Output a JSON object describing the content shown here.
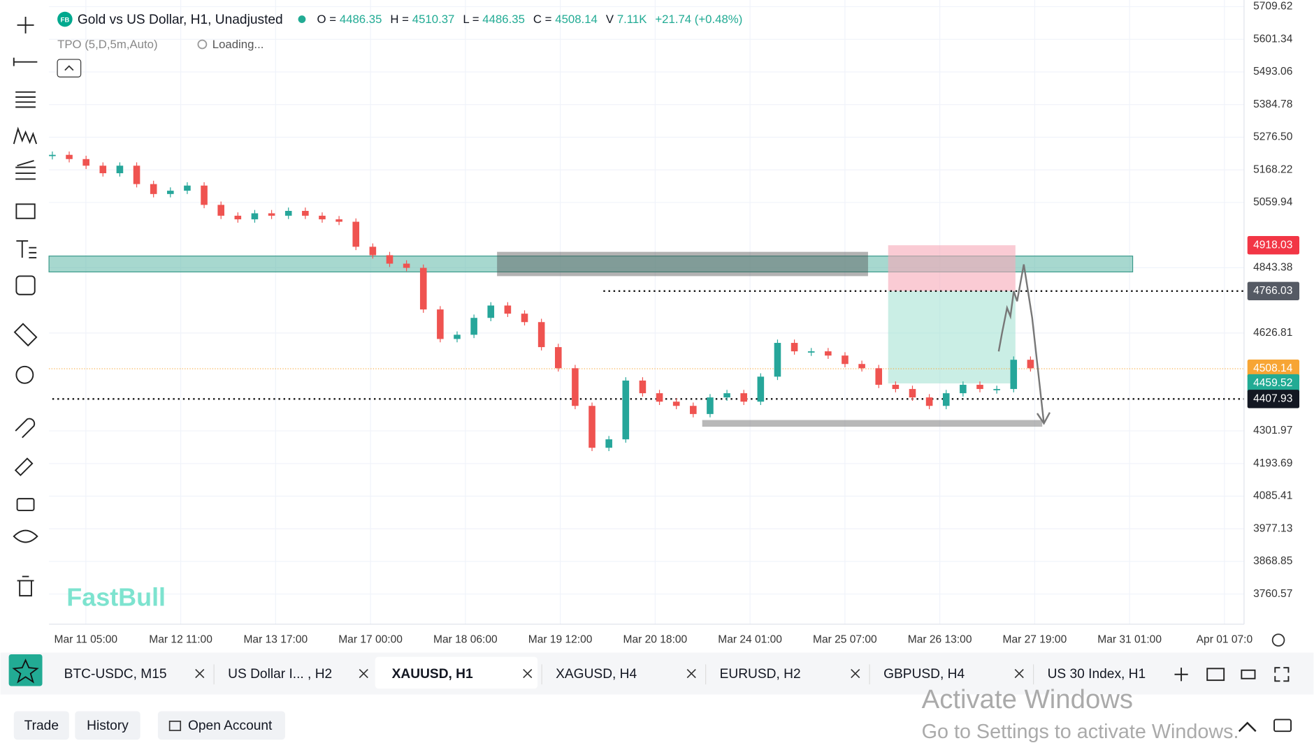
{
  "header": {
    "title": "Gold vs US Dollar, H1, Unadjusted",
    "badge": "FB",
    "ohlcv": [
      {
        "key": "O =",
        "value": "4486.35"
      },
      {
        "key": "H =",
        "value": "4510.37"
      },
      {
        "key": "L =",
        "value": "4486.35"
      },
      {
        "key": "C =",
        "value": "4508.14"
      },
      {
        "key": "V",
        "value": "7.11K"
      }
    ],
    "change": "+21.74 (+0.48%)",
    "indicator": "TPO (5,D,5m,Auto)",
    "loading": "Loading..."
  },
  "watermark": "FastBull",
  "chart": {
    "type": "candlestick",
    "ylim": [
      3660.6,
      5731.8
    ],
    "yticks": [
      5709.62,
      5601.34,
      5493.06,
      5384.78,
      {
        "value": 5276.5,
        "label": "5276.50"
      },
      5168.22,
      5059.94,
      4843.38,
      4626.81,
      4301.97,
      4193.69,
      4085.41,
      3977.13,
      3868.85,
      3760.57
    ],
    "xlabels": [
      "Mar 11 05:00",
      "Mar 12 11:00",
      "Mar 13 17:00",
      "Mar 17 00:00",
      "Mar 18 06:00",
      "Mar 19 12:00",
      "Mar 20 18:00",
      "Mar 24 01:00",
      "Mar 25 07:00",
      "Mar 26 13:00",
      "Mar 27 19:00",
      "Mar 31 01:00",
      "Apr 01 07:0"
    ],
    "closes": [
      5218,
      5204,
      5182,
      5157,
      5182,
      5121,
      5088,
      5099,
      5116,
      5052,
      5016,
      5004,
      5024,
      5016,
      5032,
      5016,
      5004,
      4996,
      4913,
      4885,
      4857,
      4843,
      4705,
      4607,
      4621,
      4677,
      4718,
      4691,
      4663,
      4580,
      4510,
      4385,
      4246,
      4274,
      4469,
      4427,
      4399,
      4385,
      4358,
      4413,
      4427,
      4399,
      4482,
      4594,
      4566,
      4566,
      4552,
      4524,
      4510,
      4455,
      4441,
      4413,
      4385,
      4427,
      4455,
      4441,
      4441,
      4538,
      4510
    ],
    "up_color": "#26a69a",
    "down_color": "#ef5350",
    "price_tags": [
      {
        "value": 4918.03,
        "color": "#f23645"
      },
      {
        "value": 4766.03,
        "color": "#555a64"
      },
      {
        "value": 4508.14,
        "color": "#f7a534"
      },
      {
        "value": 4459.52,
        "color": "#22ab94"
      },
      {
        "value": 4407.93,
        "color": "#131722"
      }
    ]
  },
  "tabs": [
    {
      "label": "BTC-USDC, M15"
    },
    {
      "label": "US Dollar I... , H2"
    },
    {
      "label": "XAUUSD, H1",
      "active": true
    },
    {
      "label": "XAGUSD, H4"
    },
    {
      "label": "EURUSD, H2"
    },
    {
      "label": "GBPUSD, H4"
    },
    {
      "label": "US 30 Index, H1"
    }
  ],
  "footer": {
    "buttons": [
      "Trade",
      "History",
      "Open Account"
    ],
    "activate_title": "Activate Windows",
    "activate_sub": "Go to Settings to activate Windows."
  }
}
